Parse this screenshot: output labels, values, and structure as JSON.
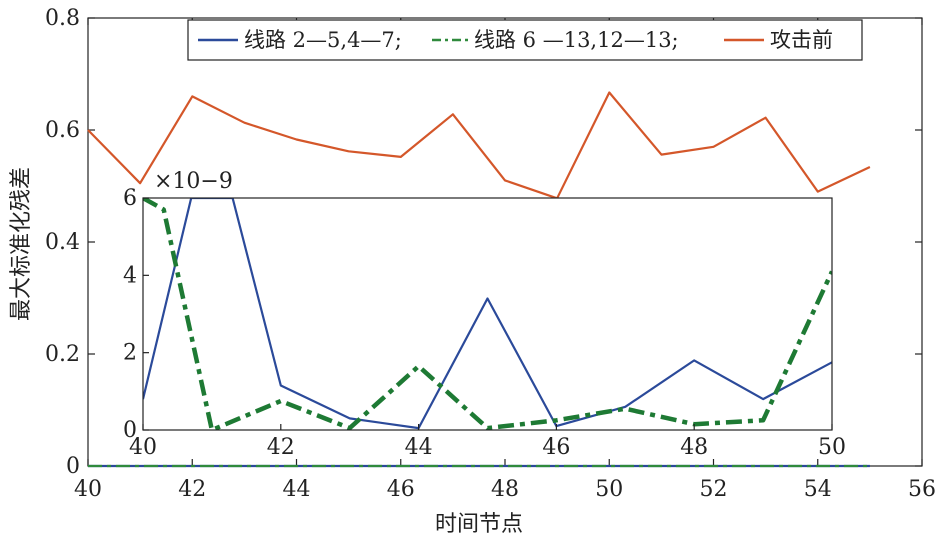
{
  "chart_data": [
    {
      "type": "line",
      "xlabel": "时间节点",
      "ylabel": "最大标准化残差",
      "xlim": [
        40,
        56
      ],
      "ylim": [
        0,
        0.8
      ],
      "xticks": [
        "40",
        "42",
        "44",
        "46",
        "48",
        "50",
        "52",
        "54",
        "56"
      ],
      "yticks": [
        "0",
        "0.2",
        "0.4",
        "0.6",
        "0.8"
      ],
      "legend_position": "top-right",
      "series": [
        {
          "name": "线路 2—5,4—7;",
          "color": "#2b4a9a",
          "dash": "solid",
          "x": [
            40,
            41,
            42,
            43,
            44,
            45,
            46,
            47,
            48,
            49,
            50,
            51,
            52,
            53,
            54,
            55
          ],
          "y": [
            0,
            0,
            0,
            0,
            0,
            0,
            0,
            0,
            0,
            0,
            0,
            0,
            0,
            0,
            0,
            0
          ]
        },
        {
          "name": "线路 6 —13,12—13;",
          "color": "#2f8a3c",
          "dash": "dashdot",
          "x": [
            40,
            41,
            42,
            43,
            44,
            45,
            46,
            47,
            48,
            49,
            50,
            51,
            52,
            53,
            54,
            55
          ],
          "y": [
            0,
            0,
            0,
            0,
            0,
            0,
            0,
            0,
            0,
            0,
            0,
            0,
            0,
            0,
            0,
            0
          ]
        },
        {
          "name": "攻击前",
          "color": "#d4572a",
          "dash": "solid",
          "x": [
            40,
            41,
            42,
            43,
            44,
            45,
            46,
            47,
            48,
            49,
            50,
            51,
            52,
            53,
            54,
            55
          ],
          "y": [
            0.6,
            0.505,
            0.66,
            0.613,
            0.583,
            0.562,
            0.552,
            0.628,
            0.51,
            0.478,
            0.667,
            0.556,
            0.57,
            0.622,
            0.49,
            0.534
          ]
        }
      ]
    },
    {
      "type": "line",
      "inset": true,
      "xlim": [
        40,
        50
      ],
      "ylim": [
        0,
        6
      ],
      "xticks": [
        "40",
        "42",
        "44",
        "46",
        "48",
        "50"
      ],
      "yticks": [
        "0",
        "2",
        "4",
        "6"
      ],
      "y_multiplier": "×10−9",
      "series": [
        {
          "color": "#2b4a9a",
          "dash": "solid",
          "x": [
            40,
            40.7,
            41.3,
            42,
            43,
            44,
            45,
            46,
            47,
            48,
            49,
            50
          ],
          "y": [
            0.8,
            6,
            6,
            1.15,
            0.3,
            0.05,
            3.4,
            0.1,
            0.6,
            1.8,
            0.8,
            1.75
          ]
        },
        {
          "color": "#1e7a34",
          "dash": "dashdot",
          "x": [
            40,
            40.3,
            41,
            42,
            43,
            44,
            45,
            46,
            47,
            48,
            49,
            50
          ],
          "y": [
            6,
            5.7,
            0,
            0.75,
            0.05,
            1.65,
            0.05,
            0.25,
            0.55,
            0.15,
            0.25,
            4.1
          ]
        }
      ]
    }
  ]
}
